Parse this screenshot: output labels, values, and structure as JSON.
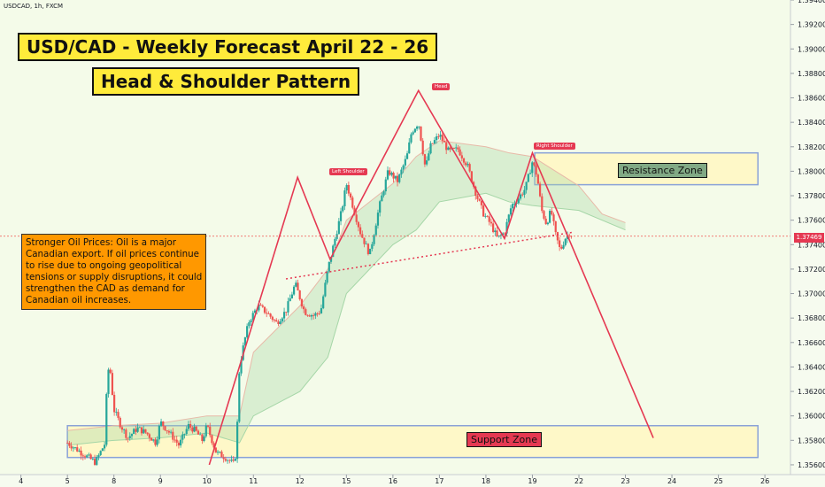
{
  "symbol": "USDCAD, 1h, FXCM",
  "title": "USD/CAD -  Weekly Forecast April 22 - 26",
  "subtitle": "Head & Shoulder Pattern",
  "note": "Stronger Oil Prices: Oil is a major Canadian export. If oil prices continue to rise due to ongoing geopolitical tensions or supply disruptions, it could strengthen the CAD as demand for Canadian oil increases.",
  "labels": {
    "left_shoulder": "Left Shoulder",
    "head": "Head",
    "right_shoulder": "Right Shoulder"
  },
  "zones": {
    "resistance": "Resistance Zone",
    "support": "Support Zone"
  },
  "current_price": "1.37469",
  "colors": {
    "background": "#f6fbef",
    "up": "#26a69a",
    "down": "#ef5350",
    "pattern": "#e53952",
    "zone_fill": "#fff7c2",
    "zone_border": "#8aa2d8",
    "title_bg": "#ffeb3b",
    "note_bg": "#ff9800",
    "resistance_label_bg": "#81a985",
    "support_label_bg": "#e53952"
  },
  "chart_data": {
    "type": "candlestick",
    "y_ticks": [
      "1.39400",
      "1.39200",
      "1.39000",
      "1.38800",
      "1.38600",
      "1.38400",
      "1.38200",
      "1.38000",
      "1.37800",
      "1.37600",
      "1.37400",
      "1.37200",
      "1.37000",
      "1.36800",
      "1.36600",
      "1.36400",
      "1.36200",
      "1.36000",
      "1.35800",
      "1.35600"
    ],
    "ylim": [
      1.3552,
      1.394
    ],
    "x_ticks": [
      {
        "label": "4",
        "x": 4.0
      },
      {
        "label": "5",
        "x": 5.0
      },
      {
        "label": "8",
        "x": 6.0
      },
      {
        "label": "9",
        "x": 7.0
      },
      {
        "label": "10",
        "x": 8.0
      },
      {
        "label": "11",
        "x": 9.0
      },
      {
        "label": "12",
        "x": 10.0
      },
      {
        "label": "15",
        "x": 11.0
      },
      {
        "label": "16",
        "x": 12.0
      },
      {
        "label": "17",
        "x": 13.0
      },
      {
        "label": "18",
        "x": 14.0
      },
      {
        "label": "19",
        "x": 15.0
      },
      {
        "label": "22",
        "x": 16.0
      },
      {
        "label": "23",
        "x": 17.0
      },
      {
        "label": "24",
        "x": 18.0
      },
      {
        "label": "25",
        "x": 19.0
      },
      {
        "label": "26",
        "x": 20.0
      }
    ],
    "xlim": [
      3.55,
      20.55
    ],
    "price_path": [
      [
        5.0,
        1.3578
      ],
      [
        5.3,
        1.357
      ],
      [
        5.6,
        1.3562
      ],
      [
        5.8,
        1.3577
      ],
      [
        5.85,
        1.3625
      ],
      [
        5.9,
        1.3645
      ],
      [
        6.0,
        1.3605
      ],
      [
        6.15,
        1.3592
      ],
      [
        6.3,
        1.3582
      ],
      [
        6.5,
        1.359
      ],
      [
        6.7,
        1.3586
      ],
      [
        6.9,
        1.3578
      ],
      [
        7.0,
        1.3595
      ],
      [
        7.2,
        1.3586
      ],
      [
        7.4,
        1.3576
      ],
      [
        7.6,
        1.3592
      ],
      [
        7.75,
        1.3588
      ],
      [
        7.9,
        1.358
      ],
      [
        8.0,
        1.3592
      ],
      [
        8.2,
        1.357
      ],
      [
        8.4,
        1.3566
      ],
      [
        8.6,
        1.356
      ],
      [
        8.65,
        1.359
      ],
      [
        8.7,
        1.364
      ],
      [
        8.8,
        1.366
      ],
      [
        8.9,
        1.3677
      ],
      [
        9.1,
        1.369
      ],
      [
        9.3,
        1.3684
      ],
      [
        9.5,
        1.3676
      ],
      [
        9.7,
        1.3686
      ],
      [
        9.9,
        1.3708
      ],
      [
        10.1,
        1.3685
      ],
      [
        10.3,
        1.3682
      ],
      [
        10.45,
        1.3686
      ],
      [
        10.6,
        1.372
      ],
      [
        10.75,
        1.3744
      ],
      [
        10.9,
        1.3768
      ],
      [
        11.0,
        1.379
      ],
      [
        11.15,
        1.377
      ],
      [
        11.3,
        1.375
      ],
      [
        11.5,
        1.3732
      ],
      [
        11.7,
        1.377
      ],
      [
        11.9,
        1.38
      ],
      [
        12.1,
        1.3792
      ],
      [
        12.3,
        1.3812
      ],
      [
        12.4,
        1.3832
      ],
      [
        12.55,
        1.384
      ],
      [
        12.7,
        1.3802
      ],
      [
        12.8,
        1.382
      ],
      [
        13.0,
        1.383
      ],
      [
        13.2,
        1.3816
      ],
      [
        13.4,
        1.3818
      ],
      [
        13.6,
        1.3805
      ],
      [
        13.8,
        1.378
      ],
      [
        13.95,
        1.3765
      ],
      [
        14.1,
        1.3757
      ],
      [
        14.25,
        1.3745
      ],
      [
        14.4,
        1.375
      ],
      [
        14.55,
        1.3772
      ],
      [
        14.7,
        1.3778
      ],
      [
        14.85,
        1.3786
      ],
      [
        15.0,
        1.3808
      ],
      [
        15.1,
        1.3796
      ],
      [
        15.2,
        1.3768
      ],
      [
        15.3,
        1.3757
      ],
      [
        15.4,
        1.3768
      ],
      [
        15.5,
        1.3748
      ],
      [
        15.6,
        1.3735
      ],
      [
        15.7,
        1.3745
      ],
      [
        15.8,
        1.375
      ],
      [
        15.85,
        1.3747
      ]
    ],
    "pattern_points": [
      [
        8.05,
        1.356
      ],
      [
        9.95,
        1.3795
      ],
      [
        10.65,
        1.3728
      ],
      [
        12.55,
        1.3866
      ],
      [
        14.4,
        1.3745
      ],
      [
        15.0,
        1.3815
      ],
      [
        17.6,
        1.3582
      ]
    ],
    "neckline": [
      [
        9.7,
        1.3712
      ],
      [
        15.85,
        1.375
      ]
    ],
    "cloud_upper": [
      [
        5.0,
        1.3588
      ],
      [
        6.0,
        1.3592
      ],
      [
        7.0,
        1.3594
      ],
      [
        8.0,
        1.36
      ],
      [
        8.7,
        1.36
      ],
      [
        9.0,
        1.3652
      ],
      [
        10.0,
        1.369
      ],
      [
        10.6,
        1.372
      ],
      [
        11.0,
        1.376
      ],
      [
        12.0,
        1.379
      ],
      [
        12.5,
        1.3812
      ],
      [
        13.0,
        1.3825
      ],
      [
        14.0,
        1.382
      ],
      [
        14.5,
        1.3815
      ],
      [
        15.0,
        1.3812
      ],
      [
        15.5,
        1.38
      ],
      [
        16.0,
        1.3788
      ],
      [
        16.5,
        1.3765
      ],
      [
        17.0,
        1.3758
      ]
    ],
    "cloud_lower": [
      [
        5.0,
        1.3576
      ],
      [
        6.0,
        1.358
      ],
      [
        7.0,
        1.3582
      ],
      [
        8.0,
        1.3586
      ],
      [
        8.7,
        1.3578
      ],
      [
        9.0,
        1.36
      ],
      [
        10.0,
        1.362
      ],
      [
        10.6,
        1.3648
      ],
      [
        11.0,
        1.37
      ],
      [
        12.0,
        1.374
      ],
      [
        12.5,
        1.3752
      ],
      [
        13.0,
        1.3775
      ],
      [
        14.0,
        1.3782
      ],
      [
        14.5,
        1.3775
      ],
      [
        15.0,
        1.3772
      ],
      [
        15.5,
        1.377
      ],
      [
        16.0,
        1.3768
      ],
      [
        16.5,
        1.376
      ],
      [
        17.0,
        1.3752
      ]
    ],
    "resistance_zone": {
      "x": [
        15.05,
        19.85
      ],
      "y": [
        1.3789,
        1.3815
      ]
    },
    "support_zone": {
      "x": [
        5.0,
        19.85
      ],
      "y": [
        1.3566,
        1.3592
      ]
    }
  }
}
